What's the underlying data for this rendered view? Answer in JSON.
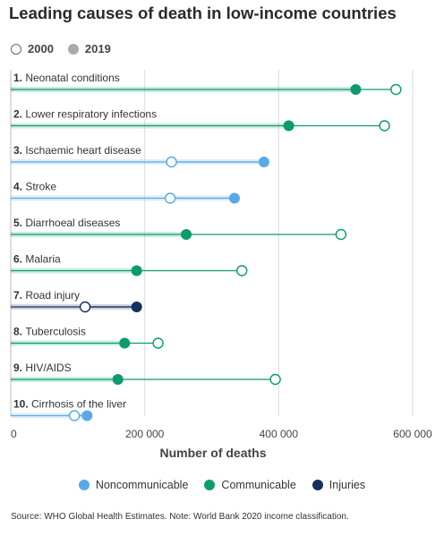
{
  "title": "Leading causes of death in low-income countries",
  "year_legend": {
    "year_a": "2000",
    "year_b": "2019"
  },
  "chart_data": {
    "type": "dumbbell",
    "xlabel": "Number of deaths",
    "xlim": [
      0,
      600000
    ],
    "xticks": [
      0,
      200000,
      400000,
      600000
    ],
    "xtick_labels": [
      "0",
      "200 000",
      "400 000",
      "600 000"
    ],
    "grid": true,
    "colors": {
      "Noncommunicable": "#5aa9e6",
      "Communicable": "#0b9b6e",
      "Injuries": "#14305c"
    },
    "causes": [
      {
        "rank": "1.",
        "name": "Neonatal conditions",
        "group": "Communicable",
        "deaths_2000": 575000,
        "deaths_2019": 515000
      },
      {
        "rank": "2.",
        "name": "Lower respiratory infections",
        "group": "Communicable",
        "deaths_2000": 558000,
        "deaths_2019": 415000
      },
      {
        "rank": "3.",
        "name": "Ischaemic heart disease",
        "group": "Noncommunicable",
        "deaths_2000": 240000,
        "deaths_2019": 378000
      },
      {
        "rank": "4.",
        "name": "Stroke",
        "group": "Noncommunicable",
        "deaths_2000": 238000,
        "deaths_2019": 334000
      },
      {
        "rank": "5.",
        "name": "Diarrhoeal diseases",
        "group": "Communicable",
        "deaths_2000": 493000,
        "deaths_2019": 262000
      },
      {
        "rank": "6.",
        "name": "Malaria",
        "group": "Communicable",
        "deaths_2000": 345000,
        "deaths_2019": 188000
      },
      {
        "rank": "7.",
        "name": "Road injury",
        "group": "Injuries",
        "deaths_2000": 111000,
        "deaths_2019": 188000
      },
      {
        "rank": "8.",
        "name": "Tuberculosis",
        "group": "Communicable",
        "deaths_2000": 220000,
        "deaths_2019": 170000
      },
      {
        "rank": "9.",
        "name": "HIV/AIDS",
        "group": "Communicable",
        "deaths_2000": 395000,
        "deaths_2019": 160000
      },
      {
        "rank": "10.",
        "name": "Cirrhosis of the liver",
        "group": "Noncommunicable",
        "deaths_2000": 95000,
        "deaths_2019": 114000
      }
    ]
  },
  "group_legend": [
    {
      "label": "Noncommunicable",
      "color": "#5aa9e6"
    },
    {
      "label": "Communicable",
      "color": "#0b9b6e"
    },
    {
      "label": "Injuries",
      "color": "#14305c"
    }
  ],
  "source": "Source: WHO Global Health Estimates. Note: World Bank 2020 income classification."
}
